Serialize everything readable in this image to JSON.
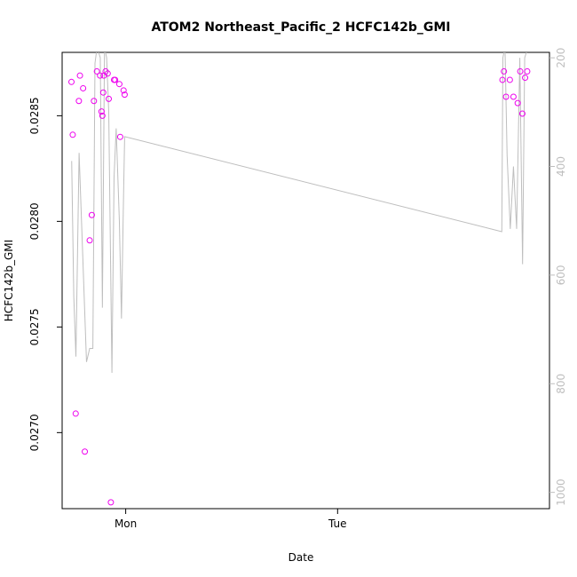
{
  "chart_data": {
    "type": "scatter",
    "title": "ATOM2 Northeast_Pacific_2 HCFC142b_GMI",
    "xlabel": "Date",
    "ylabel": "HCFC142b_GMI",
    "x_unit": "days",
    "xlim": [
      -0.3,
      2.0
    ],
    "ylim": [
      0.02664,
      0.0288
    ],
    "x_ticks": [
      {
        "value": 0,
        "label": "Mon"
      },
      {
        "value": 1,
        "label": "Tue"
      }
    ],
    "y_ticks": [
      {
        "value": 0.027,
        "label": "0.0270"
      },
      {
        "value": 0.0275,
        "label": "0.0275"
      },
      {
        "value": 0.028,
        "label": "0.0280"
      },
      {
        "value": 0.0285,
        "label": "0.0285"
      }
    ],
    "right_axis": {
      "reversed": true,
      "ylim": [
        1030,
        190
      ],
      "ticks": [
        {
          "value": 200,
          "label": "200"
        },
        {
          "value": 400,
          "label": "400"
        },
        {
          "value": 600,
          "label": "600"
        },
        {
          "value": 800,
          "label": "800"
        },
        {
          "value": 1000,
          "label": "1000"
        }
      ]
    },
    "series": [
      {
        "kind": "points",
        "color": "#ee00ee",
        "points": [
          [
            -0.256,
            0.02866
          ],
          [
            -0.25,
            0.02841
          ],
          [
            -0.236,
            0.02709
          ],
          [
            -0.221,
            0.02857
          ],
          [
            -0.216,
            0.02869
          ],
          [
            -0.201,
            0.02863
          ],
          [
            -0.193,
            0.02691
          ],
          [
            -0.17,
            0.02791
          ],
          [
            -0.16,
            0.02803
          ],
          [
            -0.15,
            0.02857
          ],
          [
            -0.136,
            0.02871
          ],
          [
            -0.121,
            0.02869
          ],
          [
            -0.114,
            0.02852
          ],
          [
            -0.11,
            0.0285
          ],
          [
            -0.106,
            0.02861
          ],
          [
            -0.103,
            0.02869
          ],
          [
            -0.095,
            0.02871
          ],
          [
            -0.085,
            0.0287
          ],
          [
            -0.08,
            0.02858
          ],
          [
            -0.07,
            0.02667
          ],
          [
            -0.055,
            0.02867
          ],
          [
            -0.05,
            0.02867
          ],
          [
            -0.03,
            0.02865
          ],
          [
            -0.026,
            0.0284
          ],
          [
            -0.01,
            0.02862
          ],
          [
            -0.005,
            0.0286
          ],
          [
            1.778,
            0.02867
          ],
          [
            1.785,
            0.02871
          ],
          [
            1.795,
            0.02859
          ],
          [
            1.813,
            0.02867
          ],
          [
            1.83,
            0.02859
          ],
          [
            1.85,
            0.02856
          ],
          [
            1.862,
            0.02871
          ],
          [
            1.872,
            0.02851
          ],
          [
            1.885,
            0.02868
          ],
          [
            1.895,
            0.02871
          ]
        ]
      },
      {
        "kind": "line",
        "axis": "right",
        "color": "#bebebe",
        "points": [
          [
            -0.255,
            390
          ],
          [
            -0.245,
            640
          ],
          [
            -0.235,
            750
          ],
          [
            -0.22,
            375
          ],
          [
            -0.205,
            540
          ],
          [
            -0.185,
            760
          ],
          [
            -0.17,
            735
          ],
          [
            -0.155,
            735
          ],
          [
            -0.145,
            210
          ],
          [
            -0.135,
            180
          ],
          [
            -0.12,
            200
          ],
          [
            -0.11,
            660
          ],
          [
            -0.1,
            180
          ],
          [
            -0.09,
            200
          ],
          [
            -0.08,
            300
          ],
          [
            -0.065,
            780
          ],
          [
            -0.055,
            420
          ],
          [
            -0.045,
            330
          ],
          [
            -0.03,
            500
          ],
          [
            -0.02,
            680
          ],
          [
            -0.01,
            450
          ],
          [
            -0.005,
            345
          ],
          [
            1.775,
            520
          ],
          [
            1.78,
            200
          ],
          [
            1.79,
            180
          ],
          [
            1.8,
            380
          ],
          [
            1.815,
            515
          ],
          [
            1.83,
            400
          ],
          [
            1.845,
            515
          ],
          [
            1.86,
            200
          ],
          [
            1.873,
            580
          ],
          [
            1.883,
            200
          ],
          [
            1.895,
            185
          ]
        ]
      }
    ]
  }
}
